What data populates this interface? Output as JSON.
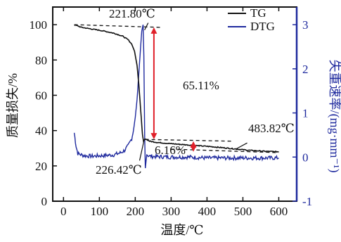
{
  "chart_data": {
    "type": "line",
    "xlabel": "温度/℃",
    "ylabel_left": "质量损失/%",
    "ylabel_right": "失重速率/(mg·mm⁻¹)",
    "xlim": [
      -30,
      650
    ],
    "ylim_left": [
      0,
      110
    ],
    "ylim_right": [
      -1,
      3.4
    ],
    "x_ticks": [
      0,
      100,
      200,
      300,
      400,
      500,
      600
    ],
    "y_left_ticks": [
      0,
      20,
      40,
      60,
      80,
      100
    ],
    "y_right_ticks": [
      -1,
      0,
      1,
      2,
      3
    ],
    "legend_position": "top-right",
    "colors": {
      "TG": "#111111",
      "DTG": "#1f2a9e",
      "arrow": "#e0202a"
    },
    "series": [
      {
        "name": "TG",
        "axis": "left",
        "x": [
          30,
          50,
          80,
          110,
          140,
          165,
          180,
          190,
          198,
          205,
          210,
          215,
          220,
          223,
          227,
          232,
          240,
          260,
          300,
          350,
          400,
          450,
          483.82,
          520,
          560,
          600
        ],
        "y": [
          100,
          98.5,
          97.5,
          96.5,
          95.2,
          93.5,
          91.5,
          89,
          85,
          77,
          66,
          52,
          38,
          34,
          35.2,
          35.0,
          34.0,
          33.3,
          32.6,
          31.8,
          31.1,
          30.2,
          29.5,
          28.8,
          28.3,
          28.0
        ]
      },
      {
        "name": "DTG",
        "axis": "right",
        "x": [
          30,
          35,
          40,
          50,
          60,
          80,
          100,
          120,
          140,
          160,
          170,
          180,
          190,
          195,
          200,
          205,
          210,
          215,
          218,
          221.8,
          224,
          226.42,
          228,
          232,
          240,
          260,
          300,
          350,
          400,
          450,
          500,
          550,
          600
        ],
        "y": [
          0.55,
          0.25,
          0.08,
          0.05,
          0.03,
          0.02,
          0.03,
          0.04,
          0.05,
          0.1,
          0.15,
          0.25,
          0.42,
          0.6,
          0.9,
          1.3,
          1.9,
          2.5,
          2.85,
          3.0,
          2.3,
          0.45,
          -0.25,
          0.05,
          0.02,
          0.01,
          0.0,
          0.0,
          -0.02,
          -0.02,
          -0.02,
          -0.02,
          -0.02
        ]
      }
    ],
    "annotations": [
      {
        "text": "221.80℃",
        "x": 221.8,
        "y_left": 98
      },
      {
        "text": "65.11%",
        "x": 260,
        "y_left": 66
      },
      {
        "text": "483.82℃",
        "x": 483.82,
        "y_left": 34
      },
      {
        "text": "6.16%",
        "x": 360,
        "y_left": 30.5
      },
      {
        "text": "226.42℃",
        "x": 226.42,
        "y_left": 24
      }
    ]
  }
}
